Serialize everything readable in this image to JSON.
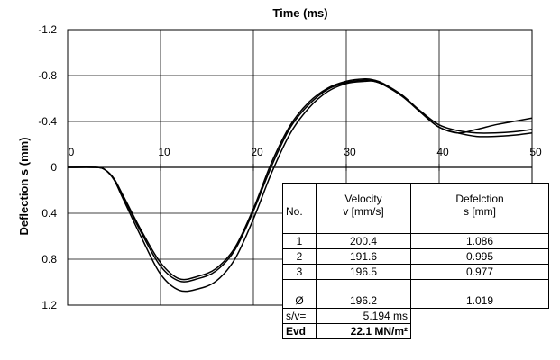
{
  "chart_data": {
    "type": "line",
    "title": "Time  (ms)",
    "xlabel": "Time  (ms)",
    "ylabel": "Deflection s (mm)",
    "xlim": [
      0,
      50
    ],
    "ylim": [
      -1.2,
      1.2
    ],
    "y_inverted": true,
    "grid": true,
    "x_ticks": [
      "0",
      "10",
      "20",
      "30",
      "40",
      "50"
    ],
    "y_ticks": [
      "-1.2",
      "-0.8",
      "-0.4",
      "0",
      "0.4",
      "0.8",
      "1.2"
    ],
    "line_color": "#000000",
    "series": [
      {
        "x": [
          0,
          3,
          4,
          5,
          6,
          8,
          10,
          12,
          14,
          16,
          18,
          20,
          22,
          24,
          26,
          28,
          30,
          32,
          33,
          34,
          36,
          38,
          40,
          42,
          44,
          46,
          48,
          50
        ],
        "values": [
          0,
          0,
          0.02,
          0.1,
          0.26,
          0.58,
          0.86,
          0.99,
          0.97,
          0.9,
          0.72,
          0.38,
          -0.02,
          -0.35,
          -0.55,
          -0.68,
          -0.74,
          -0.76,
          -0.75,
          -0.72,
          -0.62,
          -0.48,
          -0.35,
          -0.3,
          -0.33,
          -0.37,
          -0.4,
          -0.43
        ]
      },
      {
        "x": [
          0,
          3,
          4,
          5,
          6,
          8,
          10,
          12,
          14,
          16,
          18,
          20,
          22,
          24,
          26,
          28,
          30,
          32,
          33,
          34,
          36,
          38,
          40,
          42,
          44,
          46,
          48,
          50
        ],
        "values": [
          0,
          0,
          0.02,
          0.1,
          0.25,
          0.56,
          0.83,
          0.97,
          0.95,
          0.88,
          0.7,
          0.36,
          -0.05,
          -0.37,
          -0.57,
          -0.69,
          -0.75,
          -0.77,
          -0.76,
          -0.73,
          -0.63,
          -0.49,
          -0.37,
          -0.32,
          -0.3,
          -0.3,
          -0.31,
          -0.33
        ]
      },
      {
        "x": [
          0,
          3,
          4,
          5,
          6,
          8,
          10,
          12,
          14,
          16,
          18,
          20,
          22,
          24,
          26,
          28,
          30,
          32,
          33,
          34,
          36,
          38,
          40,
          42,
          44,
          46,
          48,
          50
        ],
        "values": [
          0,
          0,
          0.02,
          0.11,
          0.28,
          0.62,
          0.93,
          1.07,
          1.06,
          0.99,
          0.8,
          0.45,
          0.04,
          -0.3,
          -0.52,
          -0.66,
          -0.73,
          -0.75,
          -0.75,
          -0.72,
          -0.63,
          -0.48,
          -0.35,
          -0.3,
          -0.27,
          -0.27,
          -0.28,
          -0.3
        ]
      }
    ]
  },
  "table": {
    "header": {
      "no": "No.",
      "velocity": "Velocity\nv [mm/s]",
      "deflection": "Defelction\ns [mm]"
    },
    "rows": [
      {
        "no": "1",
        "velocity": "200.4",
        "deflection": "1.086"
      },
      {
        "no": "2",
        "velocity": "191.6",
        "deflection": "0.995"
      },
      {
        "no": "3",
        "velocity": "196.5",
        "deflection": "0.977"
      }
    ],
    "mean": {
      "symbol": "Ø",
      "velocity": "196.2",
      "deflection": "1.019"
    },
    "sv": {
      "label": "s/v=",
      "value": "5.194 ms"
    },
    "evd": {
      "label": "Evd",
      "value": "22.1 MN/m²"
    }
  }
}
